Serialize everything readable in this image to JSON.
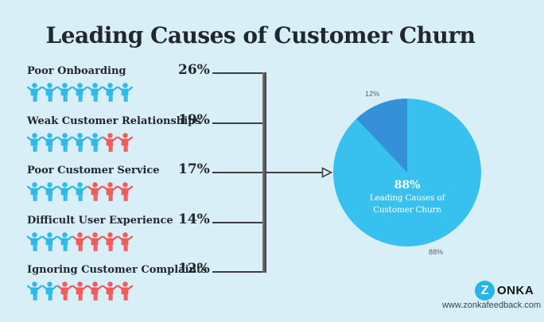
{
  "title": "Leading Causes of Customer Churn",
  "rows": [
    {
      "label": "Poor Onboarding",
      "percent": "26%",
      "icons_blue": 7,
      "icons_red": 0
    },
    {
      "label": "Weak Customer Relationships",
      "percent": "19%",
      "icons_blue": 5,
      "icons_red": 2
    },
    {
      "label": "Poor Customer Service",
      "percent": "17%",
      "icons_blue": 4,
      "icons_red": 3
    },
    {
      "label": "Difficult User Experience",
      "percent": "14%",
      "icons_blue": 3,
      "icons_red": 4
    },
    {
      "label": "Ignoring Customer Complaints",
      "percent": "12%",
      "icons_blue": 2,
      "icons_red": 5
    }
  ],
  "chart_data": [
    {
      "type": "bar",
      "variant": "pictogram",
      "categories": [
        "Poor Onboarding",
        "Weak Customer Relationships",
        "Poor Customer Service",
        "Difficult User Experience",
        "Ignoring Customer Complaints"
      ],
      "values": [
        26,
        19,
        17,
        14,
        12
      ],
      "unit": "%",
      "icons_per_row": 7,
      "red_icon_counts": [
        0,
        2,
        3,
        4,
        5
      ],
      "title": "Leading Causes of Customer Churn"
    },
    {
      "type": "pie",
      "labels": [
        "88%",
        "12%"
      ],
      "values": [
        88,
        12
      ],
      "colors": [
        "#38c1ee",
        "#3590d8"
      ],
      "start_angle_deg": 90,
      "direction": "counterclockwise",
      "legend_position": "none",
      "center_label": {
        "percent": "88%",
        "line1": "Leading Causes of",
        "line2": "Customer Churn"
      }
    }
  ],
  "branding": {
    "logo_z": "Z",
    "logo_text": "ONKA",
    "url": "www.zonkafeedback.com"
  },
  "colors": {
    "background": "#d9eff8",
    "text": "#21282c",
    "person_blue": "#2fb9e9",
    "person_red": "#f15b5b",
    "pie_main": "#38c1ee",
    "pie_slice": "#3590d8",
    "connector": "#3f3f3f",
    "small_label": "#55646d"
  }
}
